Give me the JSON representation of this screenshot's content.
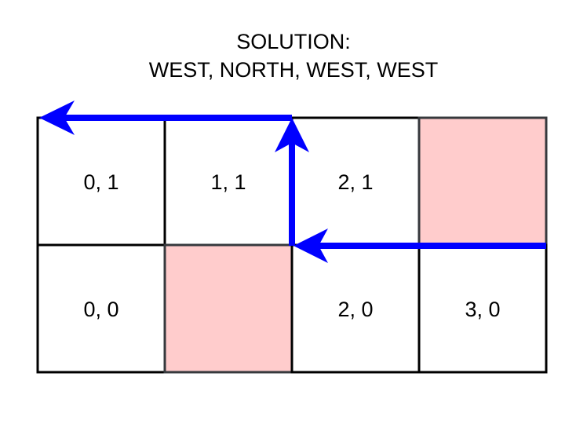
{
  "title": {
    "line1": "SOLUTION:",
    "line2": "WEST, NORTH, WEST, WEST"
  },
  "grid": {
    "columns": 4,
    "rows": 2,
    "cells": [
      {
        "col": 0,
        "row": 1,
        "label": "0, 1",
        "blocked": false
      },
      {
        "col": 1,
        "row": 1,
        "label": "1, 1",
        "blocked": false
      },
      {
        "col": 2,
        "row": 1,
        "label": "2, 1",
        "blocked": false
      },
      {
        "col": 3,
        "row": 1,
        "label": "",
        "blocked": true
      },
      {
        "col": 0,
        "row": 0,
        "label": "0, 0",
        "blocked": false
      },
      {
        "col": 1,
        "row": 0,
        "label": "",
        "blocked": true
      },
      {
        "col": 2,
        "row": 0,
        "label": "2, 0",
        "blocked": false
      },
      {
        "col": 3,
        "row": 0,
        "label": "3, 0",
        "blocked": false
      }
    ]
  },
  "colors": {
    "blocked_fill": "#ffcccc",
    "path": "#0000ff",
    "grid_line": "#000000",
    "blocked_border": "#36393d"
  }
}
